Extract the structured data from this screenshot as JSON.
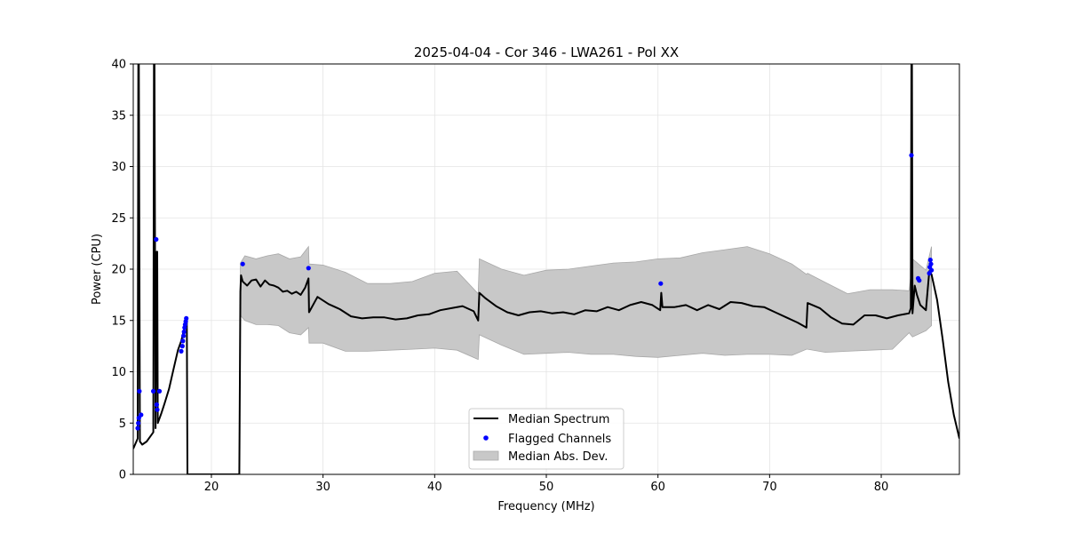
{
  "chart_data": {
    "type": "line",
    "title": "2025-04-04 - Cor 346 - LWA261 - Pol XX",
    "xlabel": "Frequency (MHz)",
    "ylabel": "Power (CPU)",
    "xlim": [
      13,
      87
    ],
    "ylim": [
      0,
      40
    ],
    "xticks": [
      20,
      30,
      40,
      50,
      60,
      70,
      80
    ],
    "yticks": [
      0,
      5,
      10,
      15,
      20,
      25,
      30,
      35,
      40
    ],
    "grid": true,
    "legend_position": "lower-center",
    "legend": [
      {
        "label": "Median Spectrum",
        "kind": "line",
        "color": "#000000"
      },
      {
        "label": "Flagged Channels",
        "kind": "point",
        "color": "#0000ff"
      },
      {
        "label": "Median Abs. Dev.",
        "kind": "band",
        "color": "#c8c8c8"
      }
    ],
    "median_spectrum": {
      "name": "Median Spectrum",
      "color": "#000000",
      "x": [
        13.0,
        13.2,
        13.4,
        13.45,
        13.5,
        13.6,
        13.8,
        14.2,
        14.6,
        14.8,
        14.85,
        14.9,
        15.0,
        15.1,
        15.15,
        15.2,
        15.3,
        15.5,
        15.8,
        16.2,
        16.6,
        17.0,
        17.3,
        17.6,
        17.8,
        17.85,
        17.9,
        22.5,
        22.6,
        22.65,
        22.8,
        23.2,
        23.6,
        24.0,
        24.4,
        24.8,
        25.2,
        25.6,
        26.0,
        26.4,
        26.8,
        27.2,
        27.6,
        28.0,
        28.4,
        28.7,
        28.75,
        29.5,
        30.5,
        31.5,
        32.5,
        33.5,
        34.5,
        35.5,
        36.5,
        37.5,
        38.5,
        39.5,
        40.5,
        41.5,
        42.5,
        43.5,
        43.9,
        44.0,
        44.5,
        45.5,
        46.5,
        47.5,
        48.5,
        49.5,
        50.5,
        51.5,
        52.5,
        53.5,
        54.5,
        55.5,
        56.5,
        57.5,
        58.5,
        59.5,
        60.2,
        60.3,
        60.4,
        61.5,
        62.5,
        63.5,
        64.5,
        65.5,
        66.5,
        67.5,
        68.5,
        69.5,
        70.5,
        71.5,
        72.5,
        73.3,
        73.4,
        74.5,
        75.5,
        76.5,
        77.5,
        78.5,
        79.5,
        80.5,
        81.5,
        82.5,
        82.65,
        82.7,
        82.75,
        82.8,
        83.0,
        83.2,
        83.5,
        84.0,
        84.3,
        84.5,
        85.0,
        85.5,
        86.0,
        86.5,
        87.0
      ],
      "y": [
        2.5,
        3.0,
        3.5,
        40.0,
        40.0,
        3.2,
        2.9,
        3.2,
        3.8,
        4.1,
        40.0,
        40.0,
        4.5,
        21.7,
        21.7,
        5.0,
        5.3,
        5.9,
        6.9,
        8.3,
        10.2,
        12.1,
        13.0,
        14.3,
        15.0,
        0.0,
        0.0,
        0.0,
        17.8,
        19.4,
        18.8,
        18.4,
        18.9,
        19.0,
        18.3,
        18.9,
        18.5,
        18.4,
        18.2,
        17.8,
        17.9,
        17.6,
        17.8,
        17.5,
        18.2,
        19.1,
        15.8,
        17.3,
        16.6,
        16.1,
        15.4,
        15.2,
        15.3,
        15.3,
        15.1,
        15.2,
        15.5,
        15.6,
        16.0,
        16.2,
        16.4,
        15.9,
        15.0,
        17.7,
        17.2,
        16.4,
        15.8,
        15.5,
        15.8,
        15.9,
        15.7,
        15.8,
        15.6,
        16.0,
        15.9,
        16.3,
        16.0,
        16.5,
        16.8,
        16.5,
        16.0,
        17.7,
        16.3,
        16.3,
        16.5,
        16.0,
        16.5,
        16.1,
        16.8,
        16.7,
        16.4,
        16.3,
        15.8,
        15.3,
        14.8,
        14.3,
        16.7,
        16.2,
        15.3,
        14.7,
        14.6,
        15.5,
        15.5,
        15.2,
        15.5,
        15.7,
        16.2,
        40.0,
        40.0,
        15.7,
        18.4,
        17.5,
        16.5,
        16.0,
        19.8,
        19.5,
        17.0,
        13.2,
        9.0,
        5.8,
        3.5
      ]
    },
    "mad_band": {
      "name": "Median Abs. Dev.",
      "color": "#c8c8c8",
      "x": [
        22.6,
        23.0,
        24.0,
        25.0,
        26.0,
        27.0,
        28.0,
        28.7,
        28.75,
        30.0,
        32.0,
        34.0,
        36.0,
        38.0,
        40.0,
        42.0,
        43.9,
        44.0,
        46.0,
        48.0,
        50.0,
        52.0,
        54.0,
        56.0,
        58.0,
        60.0,
        62.0,
        64.0,
        66.0,
        68.0,
        70.0,
        72.0,
        73.3,
        73.4,
        75.0,
        77.0,
        79.0,
        81.0,
        82.5,
        82.8,
        84.0,
        84.5
      ],
      "upper": [
        20.6,
        21.3,
        21.0,
        21.3,
        21.5,
        21.0,
        21.2,
        22.2,
        20.5,
        20.4,
        19.7,
        18.6,
        18.6,
        18.8,
        19.6,
        19.8,
        17.6,
        21.0,
        20.0,
        19.4,
        19.9,
        20.0,
        20.3,
        20.6,
        20.7,
        21.0,
        21.1,
        21.6,
        21.9,
        22.2,
        21.5,
        20.5,
        19.5,
        19.6,
        18.7,
        17.6,
        18.0,
        18.0,
        17.9,
        21.0,
        19.9,
        22.2
      ],
      "lower": [
        15.5,
        15.0,
        14.6,
        14.6,
        14.5,
        13.8,
        13.6,
        14.3,
        12.8,
        12.8,
        12.0,
        12.0,
        12.1,
        12.2,
        12.3,
        12.1,
        11.2,
        13.6,
        12.6,
        11.7,
        11.8,
        11.9,
        11.7,
        11.7,
        11.5,
        11.4,
        11.6,
        11.8,
        11.6,
        11.7,
        11.7,
        11.6,
        12.2,
        12.2,
        11.9,
        12.0,
        12.1,
        12.2,
        13.8,
        13.4,
        14.0,
        14.5
      ]
    },
    "flagged_channels": {
      "name": "Flagged Channels",
      "color": "#0000ff",
      "points": [
        {
          "x": 13.4,
          "y": 4.5
        },
        {
          "x": 13.45,
          "y": 5.0
        },
        {
          "x": 13.5,
          "y": 5.5
        },
        {
          "x": 13.55,
          "y": 8.1
        },
        {
          "x": 13.7,
          "y": 5.8
        },
        {
          "x": 14.8,
          "y": 8.1
        },
        {
          "x": 15.05,
          "y": 22.9
        },
        {
          "x": 15.1,
          "y": 6.8
        },
        {
          "x": 15.15,
          "y": 6.3
        },
        {
          "x": 15.35,
          "y": 8.1
        },
        {
          "x": 17.3,
          "y": 12.0
        },
        {
          "x": 17.4,
          "y": 12.5
        },
        {
          "x": 17.45,
          "y": 13.0
        },
        {
          "x": 17.5,
          "y": 13.5
        },
        {
          "x": 17.55,
          "y": 13.9
        },
        {
          "x": 17.6,
          "y": 14.3
        },
        {
          "x": 17.65,
          "y": 14.6
        },
        {
          "x": 17.7,
          "y": 14.9
        },
        {
          "x": 17.75,
          "y": 15.2
        },
        {
          "x": 22.8,
          "y": 20.5
        },
        {
          "x": 28.7,
          "y": 20.1
        },
        {
          "x": 60.25,
          "y": 18.6
        },
        {
          "x": 82.7,
          "y": 31.1
        },
        {
          "x": 83.3,
          "y": 19.1
        },
        {
          "x": 83.4,
          "y": 18.9
        },
        {
          "x": 84.3,
          "y": 19.6
        },
        {
          "x": 84.35,
          "y": 20.2
        },
        {
          "x": 84.4,
          "y": 20.9
        },
        {
          "x": 84.45,
          "y": 20.5
        },
        {
          "x": 84.5,
          "y": 19.9
        }
      ]
    }
  }
}
